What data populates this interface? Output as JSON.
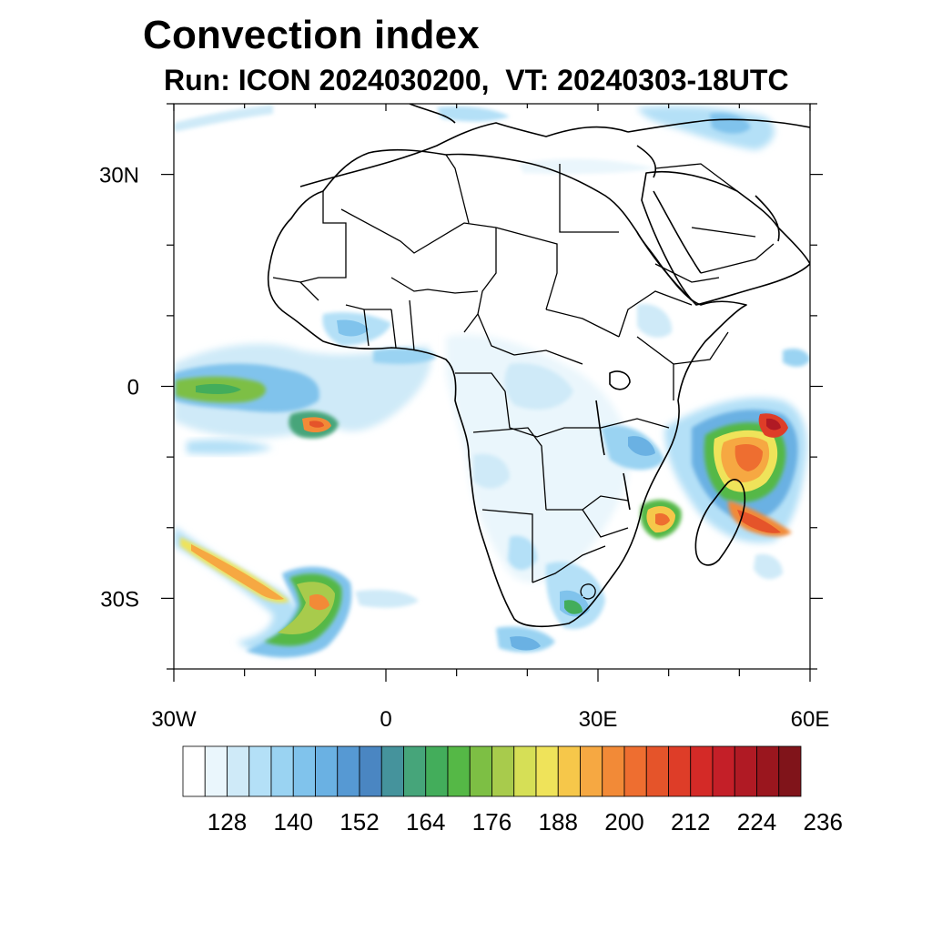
{
  "title": "Convection index",
  "subtitle": "Run: ICON 2024030200,  VT: 20240303-18UTC",
  "map": {
    "region": "Africa",
    "projection": "cylindrical equidistant",
    "lon_range": [
      -30,
      60
    ],
    "lat_range": [
      -40,
      40
    ],
    "x_ticks": [
      {
        "value": -30,
        "label": "30W"
      },
      {
        "value": 0,
        "label": "0"
      },
      {
        "value": 30,
        "label": "30E"
      },
      {
        "value": 60,
        "label": "60E"
      }
    ],
    "y_ticks": [
      {
        "value": 30,
        "label": "30N"
      },
      {
        "value": 0,
        "label": "0"
      },
      {
        "value": -30,
        "label": "30S"
      }
    ],
    "boundaries": "coastlines and country borders (black)"
  },
  "colorbar": {
    "labels": [
      "128",
      "140",
      "152",
      "164",
      "176",
      "188",
      "200",
      "212",
      "224",
      "236"
    ],
    "colors": [
      "#ffffff",
      "#eaf6fc",
      "#cfeaf8",
      "#b4e0f7",
      "#9ad3f2",
      "#80c3ec",
      "#6ab1e3",
      "#5699d3",
      "#4a86c2",
      "#45939c",
      "#46a57a",
      "#43ad5b",
      "#55b846",
      "#7dbf44",
      "#a8cb4c",
      "#d6df56",
      "#efe35a",
      "#f6c74a",
      "#f6a842",
      "#f28a37",
      "#ee6e30",
      "#e5542a",
      "#de3d28",
      "#d42a27",
      "#c41f28",
      "#b01a24",
      "#9a161e",
      "#80141a"
    ]
  }
}
